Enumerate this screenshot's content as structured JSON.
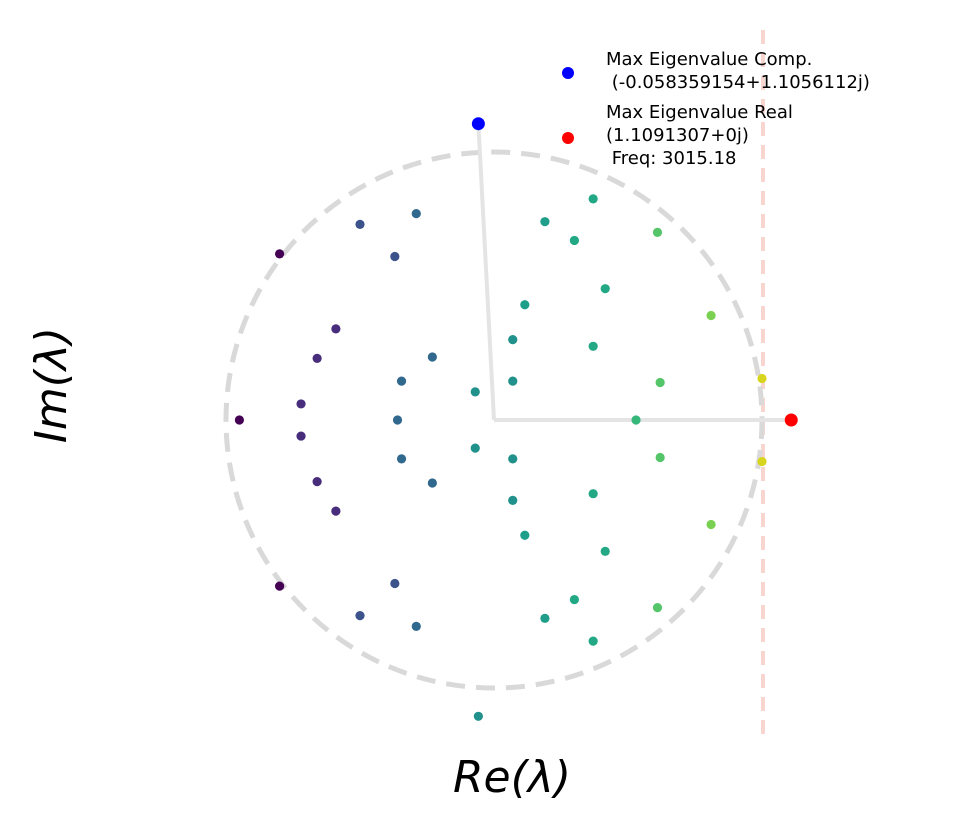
{
  "chart_data": {
    "type": "scatter",
    "xlabel": "Re(λ)",
    "ylabel": "Im(λ)",
    "xlim": [
      -1.05,
      1.25
    ],
    "ylim": [
      -1.22,
      1.45
    ],
    "grid": false,
    "legend_position": "top-right",
    "unit_circle": true,
    "threshold_line_x": 1.0,
    "colors": {
      "max_complex": "#0000ff",
      "max_real": "#ff0000",
      "unit_circle": "#d9d9d9",
      "threshold": "#f9d5d0",
      "radius_lines": "#e4e4e4"
    },
    "highlights": {
      "max_complex": {
        "x": -0.058359154,
        "y": 1.1056112
      },
      "max_real": {
        "x": 1.1091307,
        "y": 0.0
      }
    },
    "series": [
      {
        "values": [
          {
            "x": -0.95,
            "y": 0.0,
            "color": "#440154"
          },
          {
            "x": -0.8,
            "y": 0.62,
            "color": "#440154"
          },
          {
            "x": -0.8,
            "y": -0.62,
            "color": "#440154"
          },
          {
            "x": -0.72,
            "y": 0.06,
            "color": "#472d7b"
          },
          {
            "x": -0.72,
            "y": -0.06,
            "color": "#472d7b"
          },
          {
            "x": -0.66,
            "y": 0.23,
            "color": "#472d7b"
          },
          {
            "x": -0.66,
            "y": -0.23,
            "color": "#472d7b"
          },
          {
            "x": -0.59,
            "y": 0.34,
            "color": "#472d7b"
          },
          {
            "x": -0.59,
            "y": -0.34,
            "color": "#472d7b"
          },
          {
            "x": -0.5,
            "y": 0.73,
            "color": "#3b528b"
          },
          {
            "x": -0.5,
            "y": -0.73,
            "color": "#3b528b"
          },
          {
            "x": -0.37,
            "y": 0.61,
            "color": "#3b528b"
          },
          {
            "x": -0.37,
            "y": -0.61,
            "color": "#3b528b"
          },
          {
            "x": -0.29,
            "y": 0.77,
            "color": "#31688e"
          },
          {
            "x": -0.29,
            "y": -0.77,
            "color": "#31688e"
          },
          {
            "x": -0.36,
            "y": 0.0,
            "color": "#31688e"
          },
          {
            "x": -0.345,
            "y": 0.145,
            "color": "#31688e"
          },
          {
            "x": -0.345,
            "y": -0.145,
            "color": "#31688e"
          },
          {
            "x": -0.23,
            "y": 0.235,
            "color": "#31688e"
          },
          {
            "x": -0.23,
            "y": -0.235,
            "color": "#31688e"
          },
          {
            "x": -0.07,
            "y": 0.105,
            "color": "#21918c"
          },
          {
            "x": -0.07,
            "y": -0.105,
            "color": "#21918c"
          },
          {
            "x": -0.058359154,
            "y": -1.1056112,
            "color": "#21918c"
          },
          {
            "x": 0.07,
            "y": 0.145,
            "color": "#21918c"
          },
          {
            "x": 0.07,
            "y": -0.145,
            "color": "#21918c"
          },
          {
            "x": 0.07,
            "y": 0.3,
            "color": "#21918c"
          },
          {
            "x": 0.07,
            "y": -0.3,
            "color": "#21918c"
          },
          {
            "x": 0.115,
            "y": 0.43,
            "color": "#1f9e89"
          },
          {
            "x": 0.115,
            "y": -0.43,
            "color": "#1f9e89"
          },
          {
            "x": 0.19,
            "y": 0.74,
            "color": "#1f9e89"
          },
          {
            "x": 0.19,
            "y": -0.74,
            "color": "#1f9e89"
          },
          {
            "x": 0.3,
            "y": 0.67,
            "color": "#22a884"
          },
          {
            "x": 0.3,
            "y": -0.67,
            "color": "#22a884"
          },
          {
            "x": 0.37,
            "y": 0.825,
            "color": "#22a884"
          },
          {
            "x": 0.37,
            "y": -0.825,
            "color": "#22a884"
          },
          {
            "x": 0.37,
            "y": 0.275,
            "color": "#22a884"
          },
          {
            "x": 0.37,
            "y": -0.275,
            "color": "#22a884"
          },
          {
            "x": 0.415,
            "y": 0.49,
            "color": "#22a884"
          },
          {
            "x": 0.415,
            "y": -0.49,
            "color": "#22a884"
          },
          {
            "x": 0.53,
            "y": 0.0,
            "color": "#35b779"
          },
          {
            "x": 0.62,
            "y": 0.14,
            "color": "#54c568"
          },
          {
            "x": 0.62,
            "y": -0.14,
            "color": "#54c568"
          },
          {
            "x": 0.61,
            "y": 0.7,
            "color": "#54c568"
          },
          {
            "x": 0.61,
            "y": -0.7,
            "color": "#54c568"
          },
          {
            "x": 0.81,
            "y": 0.39,
            "color": "#7ad151"
          },
          {
            "x": 0.81,
            "y": -0.39,
            "color": "#7ad151"
          },
          {
            "x": 1.0,
            "y": 0.155,
            "color": "#d8d51f"
          },
          {
            "x": 1.0,
            "y": -0.155,
            "color": "#d8d51f"
          }
        ]
      }
    ]
  },
  "legend": {
    "entries": [
      {
        "label_line1": "Max Eigenvalue Comp.",
        "label_line2": " (-0.058359154+1.1056112j)",
        "label_line3": "",
        "color": "#0000ff"
      },
      {
        "label_line1": "Max Eigenvalue Real",
        "label_line2": "(1.1091307+0j)",
        "label_line3": " Freq: 3015.18",
        "color": "#ff0000"
      }
    ]
  }
}
